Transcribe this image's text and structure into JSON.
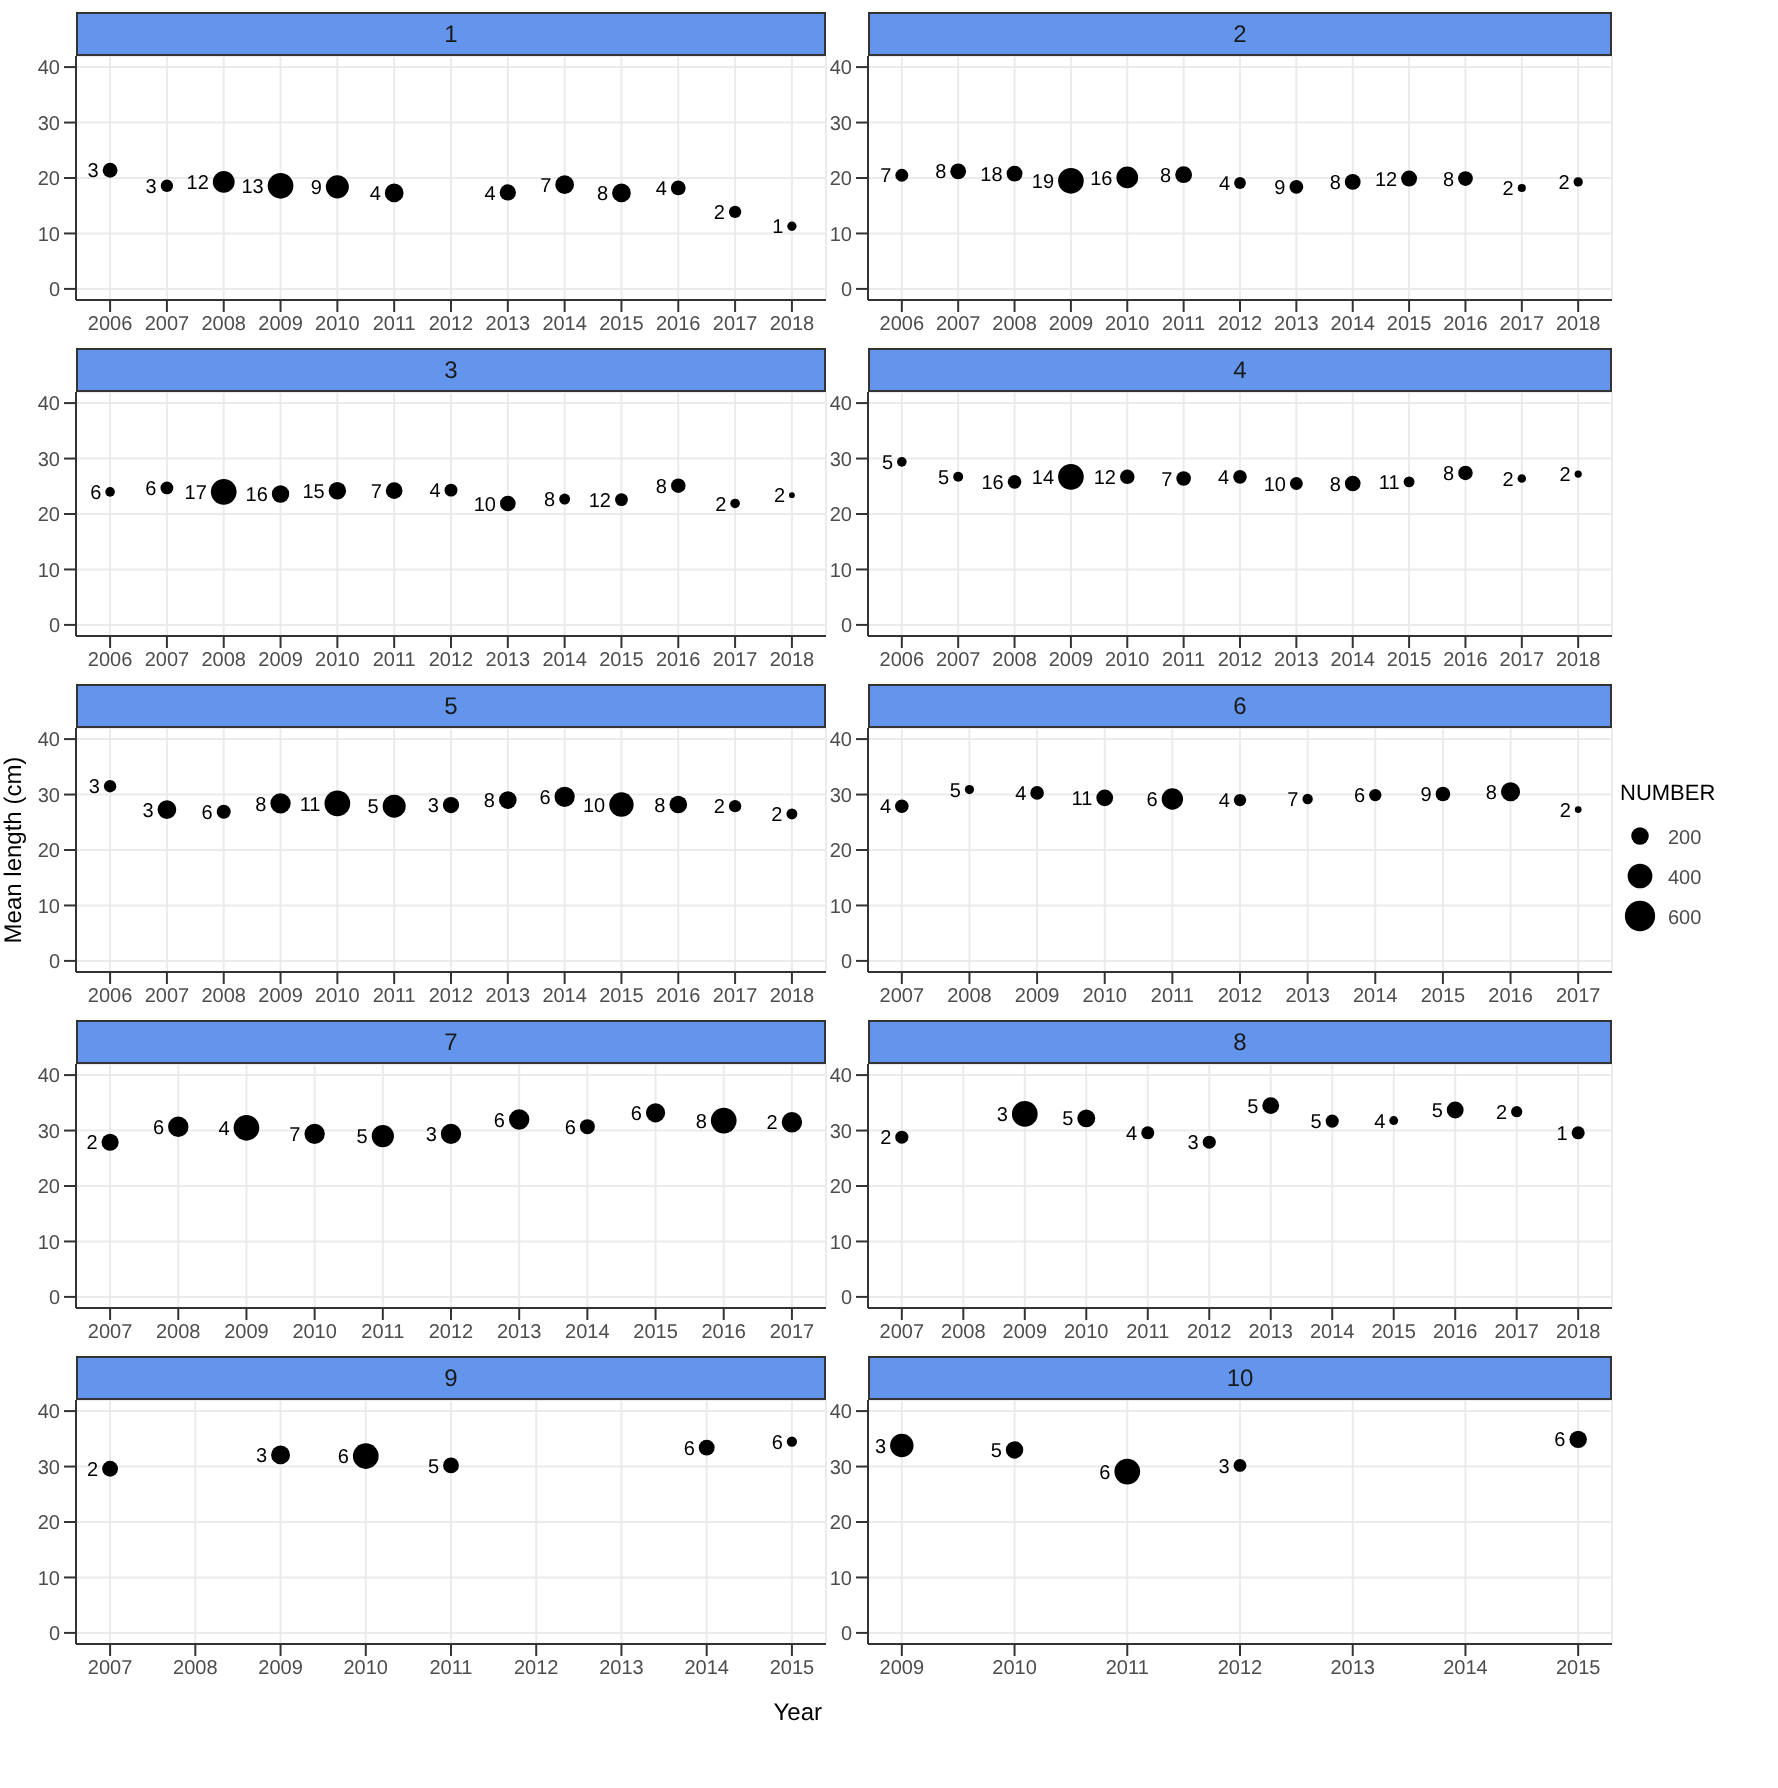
{
  "chart_data": [
    {
      "type": "bubble",
      "title": "1",
      "color": "#000000",
      "marker": "circle",
      "grid": true,
      "xlim": [
        2005.4,
        2018.6
      ],
      "xticks": [
        2006,
        2007,
        2008,
        2009,
        2010,
        2011,
        2012,
        2013,
        2014,
        2015,
        2016,
        2017,
        2018
      ],
      "ylim": [
        -2,
        42
      ],
      "yticks": [
        0,
        10,
        20,
        30,
        40
      ],
      "x": [
        2006,
        2007,
        2008,
        2009,
        2010,
        2011,
        2013,
        2014,
        2015,
        2016,
        2017,
        2018
      ],
      "values": [
        21.4,
        18.6,
        19.3,
        18.6,
        18.4,
        17.3,
        17.4,
        18.8,
        17.3,
        18.2,
        13.9,
        11.3
      ],
      "sizes": [
        0.33,
        0.23,
        0.72,
        1,
        0.8,
        0.53,
        0.4,
        0.53,
        0.53,
        0.33,
        0.23,
        0.13
      ],
      "annotations": [
        {
          "text": "3",
          "x": 2006,
          "y": 21.4
        },
        {
          "text": "3",
          "x": 2007,
          "y": 18.6
        },
        {
          "text": "12",
          "x": 2008,
          "y": 19.3
        },
        {
          "text": "13",
          "x": 2009,
          "y": 18.6
        },
        {
          "text": "9",
          "x": 2010,
          "y": 18.4
        },
        {
          "text": "4",
          "x": 2011,
          "y": 17.3
        },
        {
          "text": "4",
          "x": 2013,
          "y": 17.4
        },
        {
          "text": "7",
          "x": 2014,
          "y": 18.8
        },
        {
          "text": "8",
          "x": 2015,
          "y": 17.3
        },
        {
          "text": "4",
          "x": 2016,
          "y": 18.2
        },
        {
          "text": "2",
          "x": 2017,
          "y": 13.9
        },
        {
          "text": "1",
          "x": 2018,
          "y": 11.3
        }
      ]
    },
    {
      "type": "bubble",
      "title": "2",
      "color": "#000000",
      "marker": "circle",
      "grid": true,
      "xlim": [
        2005.4,
        2018.6
      ],
      "xticks": [
        2006,
        2007,
        2008,
        2009,
        2010,
        2011,
        2012,
        2013,
        2014,
        2015,
        2016,
        2017,
        2018
      ],
      "ylim": [
        -2,
        42
      ],
      "yticks": [
        0,
        10,
        20,
        30,
        40
      ],
      "x": [
        2006,
        2007,
        2008,
        2009,
        2010,
        2011,
        2012,
        2013,
        2014,
        2015,
        2016,
        2017,
        2018
      ],
      "values": [
        20.5,
        21.2,
        20.8,
        19.5,
        20.1,
        20.6,
        19.1,
        18.4,
        19.3,
        19.9,
        19.9,
        18.2,
        19.3
      ],
      "sizes": [
        0.25,
        0.38,
        0.38,
        1,
        0.71,
        0.43,
        0.21,
        0.29,
        0.38,
        0.38,
        0.33,
        0.1,
        0.13
      ],
      "annotations": [
        {
          "text": "7",
          "x": 2006,
          "y": 20.5
        },
        {
          "text": "8",
          "x": 2007,
          "y": 21.2
        },
        {
          "text": "18",
          "x": 2008,
          "y": 20.8
        },
        {
          "text": "19",
          "x": 2009,
          "y": 19.5
        },
        {
          "text": "16",
          "x": 2010,
          "y": 20.1
        },
        {
          "text": "8",
          "x": 2011,
          "y": 20.6
        },
        {
          "text": "4",
          "x": 2012,
          "y": 19.1
        },
        {
          "text": "9",
          "x": 2013,
          "y": 18.4
        },
        {
          "text": "8",
          "x": 2014,
          "y": 19.3
        },
        {
          "text": "12",
          "x": 2015,
          "y": 19.9
        },
        {
          "text": "8",
          "x": 2016,
          "y": 19.9
        },
        {
          "text": "2",
          "x": 2017,
          "y": 18.2
        },
        {
          "text": "2",
          "x": 2018,
          "y": 19.3
        }
      ]
    },
    {
      "type": "bubble",
      "title": "3",
      "color": "#000000",
      "marker": "circle",
      "grid": true,
      "xlim": [
        2005.4,
        2018.6
      ],
      "xticks": [
        2006,
        2007,
        2008,
        2009,
        2010,
        2011,
        2012,
        2013,
        2014,
        2015,
        2016,
        2017,
        2018
      ],
      "ylim": [
        -2,
        42
      ],
      "yticks": [
        0,
        10,
        20,
        30,
        40
      ],
      "x": [
        2006,
        2007,
        2008,
        2009,
        2010,
        2011,
        2012,
        2013,
        2014,
        2015,
        2016,
        2017,
        2018
      ],
      "values": [
        24.0,
        24.7,
        24.0,
        23.6,
        24.2,
        24.2,
        24.3,
        21.9,
        22.7,
        22.6,
        25.1,
        21.9,
        23.4
      ],
      "sizes": [
        0.14,
        0.25,
        1,
        0.46,
        0.46,
        0.42,
        0.25,
        0.37,
        0.18,
        0.25,
        0.32,
        0.14,
        0.05
      ],
      "annotations": [
        {
          "text": "6",
          "x": 2006,
          "y": 24.0
        },
        {
          "text": "6",
          "x": 2007,
          "y": 24.7
        },
        {
          "text": "17",
          "x": 2008,
          "y": 24.0
        },
        {
          "text": "16",
          "x": 2009,
          "y": 23.6
        },
        {
          "text": "15",
          "x": 2010,
          "y": 24.2
        },
        {
          "text": "7",
          "x": 2011,
          "y": 24.2
        },
        {
          "text": "4",
          "x": 2012,
          "y": 24.3
        },
        {
          "text": "10",
          "x": 2013,
          "y": 21.9
        },
        {
          "text": "8",
          "x": 2014,
          "y": 22.7
        },
        {
          "text": "12",
          "x": 2015,
          "y": 22.6
        },
        {
          "text": "8",
          "x": 2016,
          "y": 25.1
        },
        {
          "text": "2",
          "x": 2017,
          "y": 21.9
        },
        {
          "text": "2",
          "x": 2018,
          "y": 23.4
        }
      ]
    },
    {
      "type": "bubble",
      "title": "4",
      "color": "#000000",
      "marker": "circle",
      "grid": true,
      "xlim": [
        2005.4,
        2018.6
      ],
      "xticks": [
        2006,
        2007,
        2008,
        2009,
        2010,
        2011,
        2012,
        2013,
        2014,
        2015,
        2016,
        2017,
        2018
      ],
      "ylim": [
        -2,
        42
      ],
      "yticks": [
        0,
        10,
        20,
        30,
        40
      ],
      "x": [
        2006,
        2007,
        2008,
        2009,
        2010,
        2011,
        2012,
        2013,
        2014,
        2015,
        2016,
        2017,
        2018
      ],
      "values": [
        29.4,
        26.7,
        25.8,
        26.7,
        26.7,
        26.4,
        26.7,
        25.5,
        25.5,
        25.8,
        27.4,
        26.4,
        27.2
      ],
      "sizes": [
        0.14,
        0.15,
        0.28,
        1,
        0.32,
        0.32,
        0.28,
        0.25,
        0.37,
        0.18,
        0.32,
        0.11,
        0.08
      ],
      "annotations": [
        {
          "text": "5",
          "x": 2006,
          "y": 29.4
        },
        {
          "text": "5",
          "x": 2007,
          "y": 26.7
        },
        {
          "text": "16",
          "x": 2008,
          "y": 25.8
        },
        {
          "text": "14",
          "x": 2009,
          "y": 26.7
        },
        {
          "text": "12",
          "x": 2010,
          "y": 26.7
        },
        {
          "text": "7",
          "x": 2011,
          "y": 26.4
        },
        {
          "text": "4",
          "x": 2012,
          "y": 26.7
        },
        {
          "text": "10",
          "x": 2013,
          "y": 25.5
        },
        {
          "text": "8",
          "x": 2014,
          "y": 25.5
        },
        {
          "text": "11",
          "x": 2015,
          "y": 25.8
        },
        {
          "text": "8",
          "x": 2016,
          "y": 27.4
        },
        {
          "text": "2",
          "x": 2017,
          "y": 26.4
        },
        {
          "text": "2",
          "x": 2018,
          "y": 27.2
        }
      ]
    },
    {
      "type": "bubble",
      "title": "5",
      "ylabel": "Mean length (cm)",
      "color": "#000000",
      "marker": "circle",
      "grid": true,
      "xlim": [
        2005.4,
        2018.6
      ],
      "xticks": [
        2006,
        2007,
        2008,
        2009,
        2010,
        2011,
        2012,
        2013,
        2014,
        2015,
        2016,
        2017,
        2018
      ],
      "ylim": [
        -2,
        42
      ],
      "yticks": [
        0,
        10,
        20,
        30,
        40
      ],
      "x": [
        2006,
        2007,
        2008,
        2009,
        2010,
        2011,
        2012,
        2013,
        2014,
        2015,
        2016,
        2017,
        2018
      ],
      "values": [
        31.5,
        27.3,
        26.9,
        28.4,
        28.4,
        27.9,
        28.1,
        29.0,
        29.6,
        28.2,
        28.2,
        27.9,
        26.5
      ],
      "sizes": [
        0.23,
        0.53,
        0.3,
        0.62,
        1,
        0.8,
        0.4,
        0.47,
        0.62,
        0.9,
        0.47,
        0.23,
        0.18
      ],
      "annotations": [
        {
          "text": "3",
          "x": 2006,
          "y": 31.5
        },
        {
          "text": "3",
          "x": 2007,
          "y": 27.3
        },
        {
          "text": "6",
          "x": 2008,
          "y": 26.9
        },
        {
          "text": "8",
          "x": 2009,
          "y": 28.4
        },
        {
          "text": "11",
          "x": 2010,
          "y": 28.4
        },
        {
          "text": "5",
          "x": 2011,
          "y": 27.9
        },
        {
          "text": "3",
          "x": 2012,
          "y": 28.1
        },
        {
          "text": "8",
          "x": 2013,
          "y": 29.0
        },
        {
          "text": "6",
          "x": 2014,
          "y": 29.6
        },
        {
          "text": "10",
          "x": 2015,
          "y": 28.2
        },
        {
          "text": "8",
          "x": 2016,
          "y": 28.2
        },
        {
          "text": "2",
          "x": 2017,
          "y": 27.9
        },
        {
          "text": "2",
          "x": 2018,
          "y": 26.5
        }
      ]
    },
    {
      "type": "bubble",
      "title": "6",
      "legend_title": "NUMBER",
      "size_legend": [
        200,
        400,
        600
      ],
      "color": "#000000",
      "marker": "circle",
      "grid": true,
      "xlim": [
        2006.5,
        2017.5
      ],
      "xticks": [
        2007,
        2008,
        2009,
        2010,
        2011,
        2012,
        2013,
        2014,
        2015,
        2016,
        2017
      ],
      "ylim": [
        -2,
        42
      ],
      "yticks": [
        0,
        10,
        20,
        30,
        40
      ],
      "x": [
        2007,
        2008,
        2009,
        2010,
        2011,
        2012,
        2013,
        2014,
        2015,
        2016,
        2017
      ],
      "values": [
        27.9,
        30.9,
        30.3,
        29.4,
        29.2,
        29.0,
        29.2,
        29.9,
        30.1,
        30.5,
        27.3
      ],
      "sizes": [
        120,
        55,
        120,
        185,
        300,
        100,
        70,
        100,
        140,
        240,
        30
      ],
      "annotations": [
        {
          "text": "4",
          "x": 2007,
          "y": 27.9
        },
        {
          "text": "5",
          "x": 2008,
          "y": 30.9
        },
        {
          "text": "4",
          "x": 2009,
          "y": 30.3
        },
        {
          "text": "11",
          "x": 2010,
          "y": 29.4
        },
        {
          "text": "6",
          "x": 2011,
          "y": 29.2
        },
        {
          "text": "4",
          "x": 2012,
          "y": 29.0
        },
        {
          "text": "7",
          "x": 2013,
          "y": 29.2
        },
        {
          "text": "6",
          "x": 2014,
          "y": 29.9
        },
        {
          "text": "9",
          "x": 2015,
          "y": 30.1
        },
        {
          "text": "8",
          "x": 2016,
          "y": 30.5
        },
        {
          "text": "2",
          "x": 2017,
          "y": 27.3
        }
      ]
    },
    {
      "type": "bubble",
      "title": "7",
      "color": "#000000",
      "marker": "circle",
      "grid": true,
      "xlim": [
        2006.5,
        2017.5
      ],
      "xticks": [
        2007,
        2008,
        2009,
        2010,
        2011,
        2012,
        2013,
        2014,
        2015,
        2016,
        2017
      ],
      "ylim": [
        -2,
        42
      ],
      "yticks": [
        0,
        10,
        20,
        30,
        40
      ],
      "x": [
        2007,
        2008,
        2009,
        2010,
        2011,
        2012,
        2013,
        2014,
        2015,
        2016,
        2017
      ],
      "values": [
        27.9,
        30.7,
        30.5,
        29.4,
        29.0,
        29.4,
        32.0,
        30.7,
        33.2,
        31.8,
        31.5
      ],
      "sizes": [
        0.44,
        0.63,
        1,
        0.63,
        0.75,
        0.63,
        0.63,
        0.34,
        0.56,
        1,
        0.63
      ],
      "annotations": [
        {
          "text": "2",
          "x": 2007,
          "y": 27.9
        },
        {
          "text": "6",
          "x": 2008,
          "y": 30.7
        },
        {
          "text": "4",
          "x": 2009,
          "y": 30.5
        },
        {
          "text": "7",
          "x": 2010,
          "y": 29.4
        },
        {
          "text": "5",
          "x": 2011,
          "y": 29.0
        },
        {
          "text": "3",
          "x": 2012,
          "y": 29.4
        },
        {
          "text": "6",
          "x": 2013,
          "y": 32.0
        },
        {
          "text": "6",
          "x": 2014,
          "y": 30.7
        },
        {
          "text": "6",
          "x": 2015,
          "y": 33.2
        },
        {
          "text": "8",
          "x": 2016,
          "y": 31.8
        },
        {
          "text": "2",
          "x": 2017,
          "y": 31.5
        }
      ]
    },
    {
      "type": "bubble",
      "title": "8",
      "color": "#000000",
      "marker": "circle",
      "grid": true,
      "xlim": [
        2006.45,
        2018.55
      ],
      "xticks": [
        2007,
        2008,
        2009,
        2010,
        2011,
        2012,
        2013,
        2014,
        2015,
        2016,
        2017,
        2018
      ],
      "ylim": [
        -2,
        42
      ],
      "yticks": [
        0,
        10,
        20,
        30,
        40
      ],
      "x": [
        2007,
        2009,
        2010,
        2011,
        2012,
        2013,
        2014,
        2015,
        2016,
        2017,
        2018
      ],
      "values": [
        28.8,
        33.0,
        32.2,
        29.6,
        27.9,
        34.5,
        31.7,
        31.8,
        33.7,
        33.4,
        29.6
      ],
      "sizes": [
        0.26,
        1,
        0.48,
        0.26,
        0.26,
        0.43,
        0.26,
        0.12,
        0.43,
        0.19,
        0.26
      ],
      "annotations": [
        {
          "text": "2",
          "x": 2007,
          "y": 28.8
        },
        {
          "text": "3",
          "x": 2009,
          "y": 33.0
        },
        {
          "text": "5",
          "x": 2010,
          "y": 32.2
        },
        {
          "text": "4",
          "x": 2011,
          "y": 29.6
        },
        {
          "text": "3",
          "x": 2012,
          "y": 27.9
        },
        {
          "text": "5",
          "x": 2013,
          "y": 34.5
        },
        {
          "text": "5",
          "x": 2014,
          "y": 31.7
        },
        {
          "text": "4",
          "x": 2015,
          "y": 31.8
        },
        {
          "text": "5",
          "x": 2016,
          "y": 33.7
        },
        {
          "text": "2",
          "x": 2017,
          "y": 33.4
        },
        {
          "text": "1",
          "x": 2018,
          "y": 29.6
        }
      ]
    },
    {
      "type": "bubble",
      "title": "9",
      "xlabel": "Year",
      "color": "#000000",
      "marker": "circle",
      "grid": true,
      "xlim": [
        2006.6,
        2015.4
      ],
      "xticks": [
        2007,
        2008,
        2009,
        2010,
        2011,
        2012,
        2013,
        2014,
        2015
      ],
      "ylim": [
        -2,
        42
      ],
      "yticks": [
        0,
        10,
        20,
        30,
        40
      ],
      "x": [
        2007,
        2009,
        2010,
        2011,
        2014,
        2015
      ],
      "values": [
        29.6,
        32.1,
        31.9,
        30.2,
        33.4,
        34.5
      ],
      "sizes": [
        0.38,
        0.54,
        1,
        0.38,
        0.38,
        0.16
      ],
      "annotations": [
        {
          "text": "2",
          "x": 2007,
          "y": 29.6
        },
        {
          "text": "3",
          "x": 2009,
          "y": 32.1
        },
        {
          "text": "6",
          "x": 2010,
          "y": 31.9
        },
        {
          "text": "5",
          "x": 2011,
          "y": 30.2
        },
        {
          "text": "6",
          "x": 2014,
          "y": 33.4
        },
        {
          "text": "6",
          "x": 2015,
          "y": 34.5
        }
      ]
    },
    {
      "type": "bubble",
      "title": "10",
      "color": "#000000",
      "marker": "circle",
      "grid": true,
      "xlim": [
        2008.7,
        2015.3
      ],
      "xticks": [
        2009,
        2010,
        2011,
        2012,
        2013,
        2014,
        2015
      ],
      "ylim": [
        -2,
        42
      ],
      "yticks": [
        0,
        10,
        20,
        30,
        40
      ],
      "x": [
        2009,
        2010,
        2011,
        2012,
        2015
      ],
      "values": [
        33.8,
        33.0,
        29.1,
        30.2,
        34.9
      ],
      "sizes": [
        0.83,
        0.46,
        1,
        0.25,
        0.46
      ],
      "annotations": [
        {
          "text": "3",
          "x": 2009,
          "y": 33.8
        },
        {
          "text": "5",
          "x": 2010,
          "y": 33.0
        },
        {
          "text": "6",
          "x": 2011,
          "y": 29.1
        },
        {
          "text": "3",
          "x": 2012,
          "y": 30.2
        },
        {
          "text": "6",
          "x": 2015,
          "y": 34.9
        }
      ]
    }
  ]
}
